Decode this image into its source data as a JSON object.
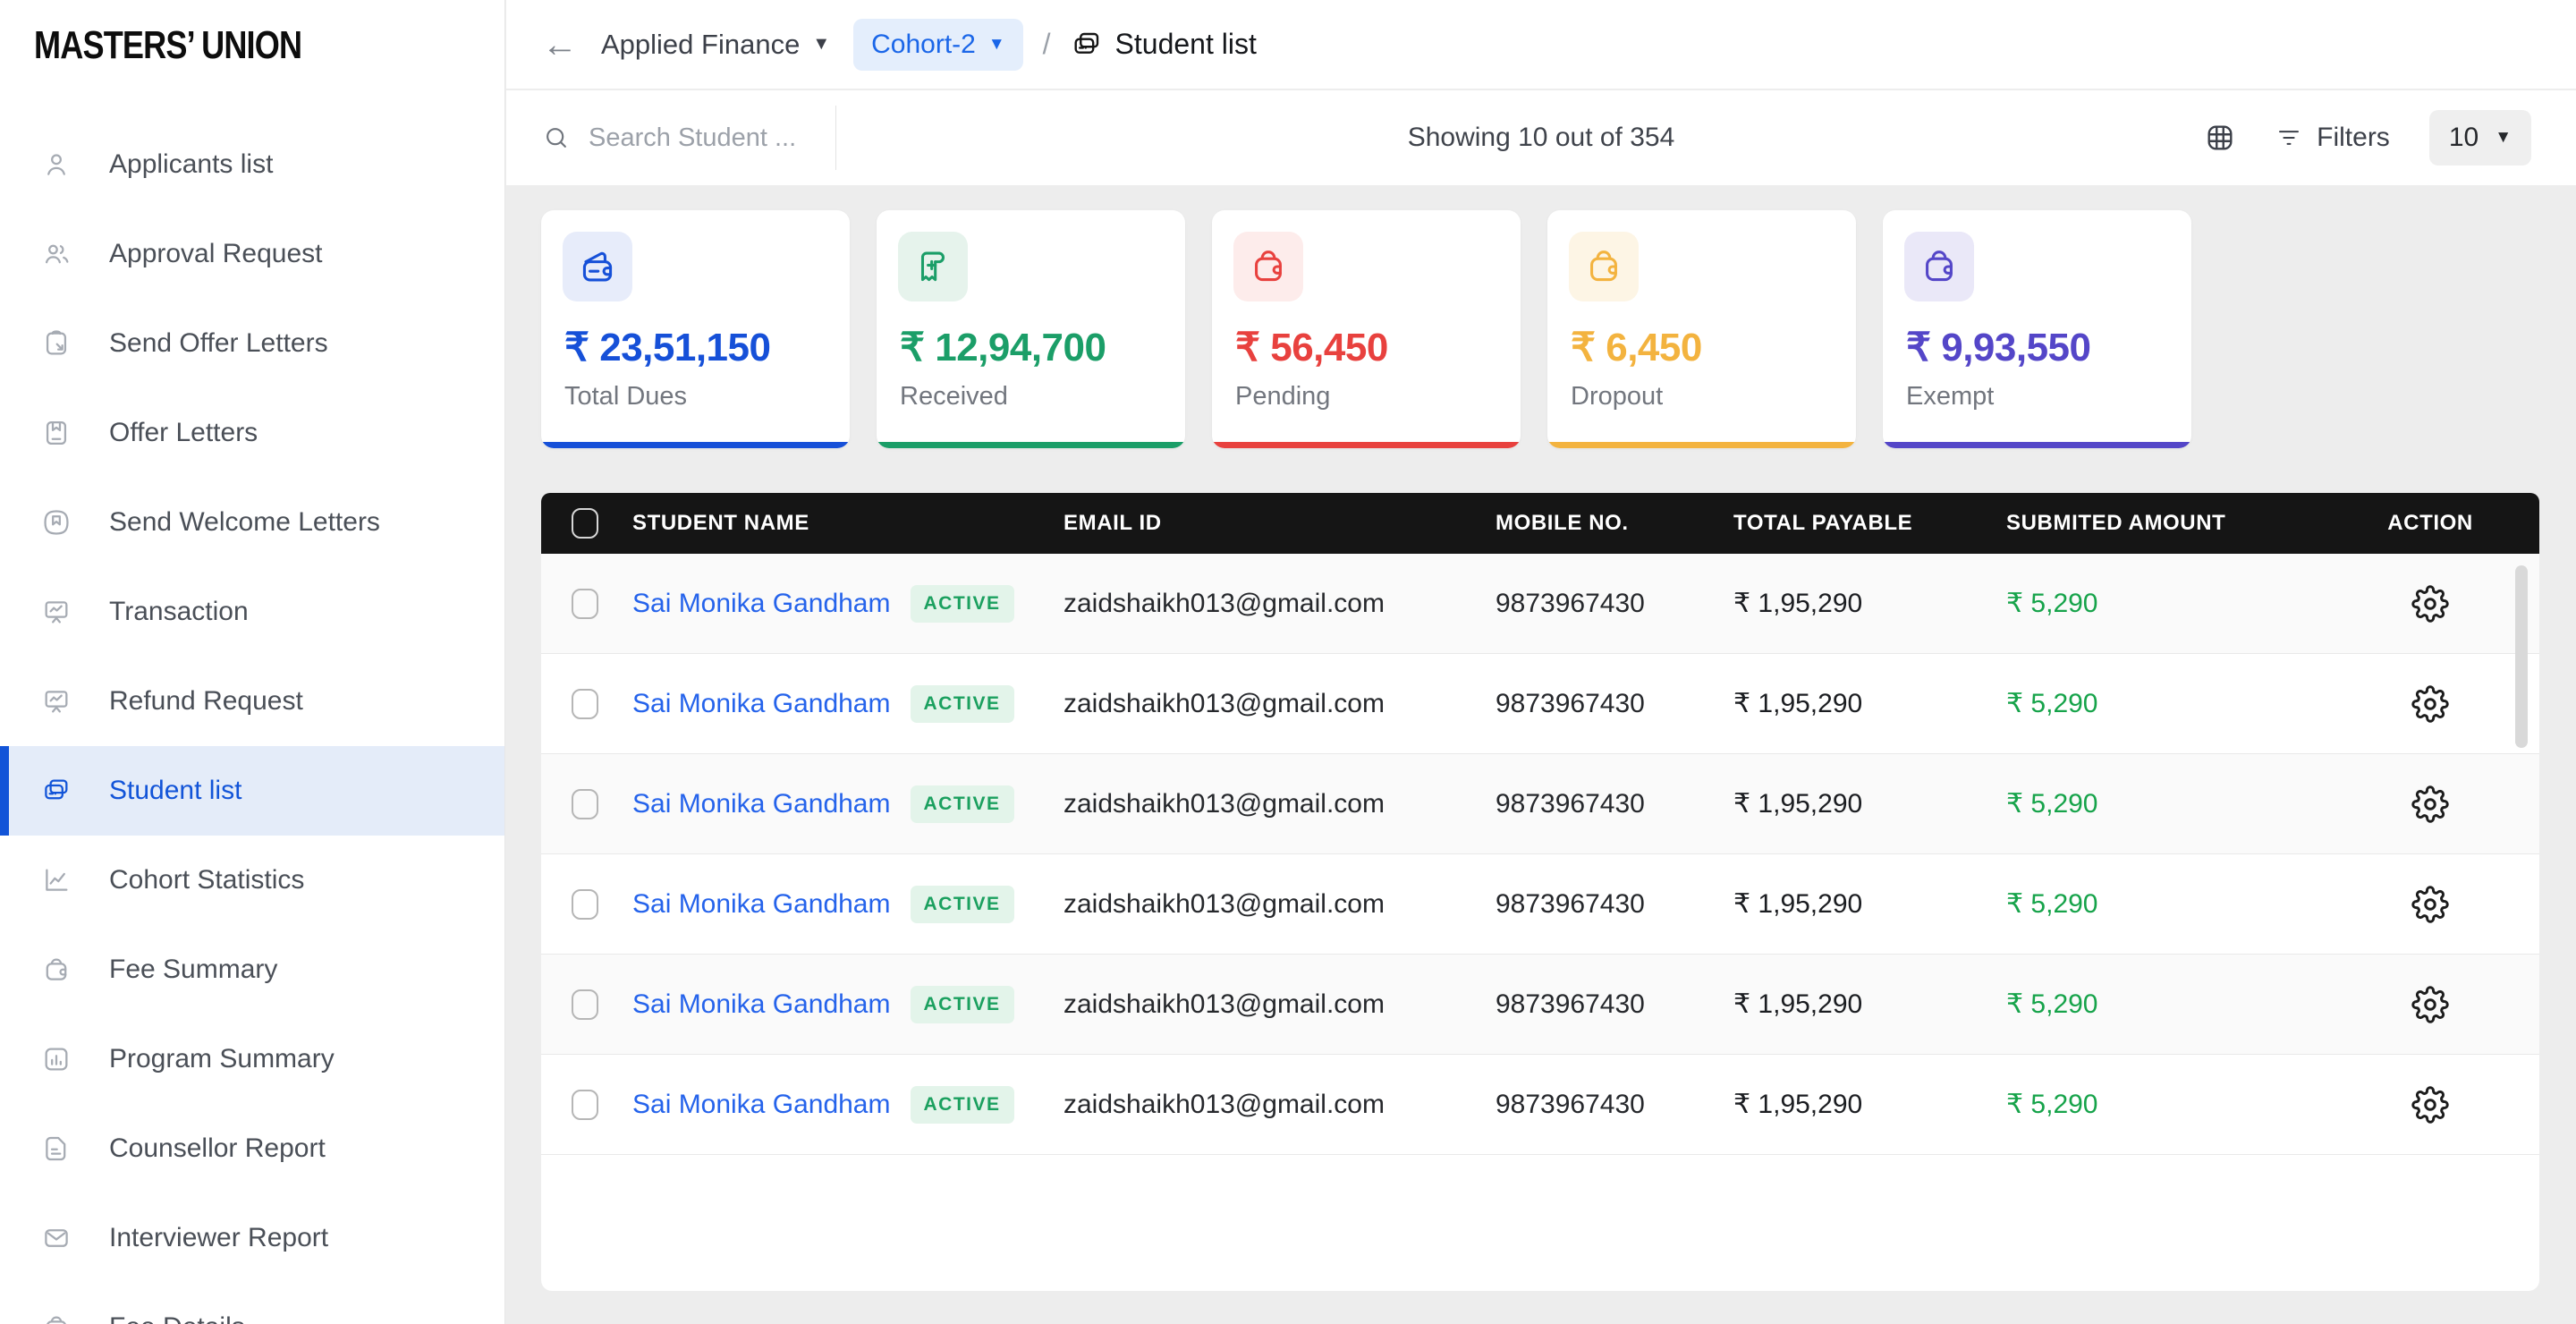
{
  "brand": {
    "logo": "MASTERS’ UNION"
  },
  "sidebar": {
    "items": [
      {
        "label": "Applicants list",
        "icon": "user-icon",
        "active": false
      },
      {
        "label": "Approval Request",
        "icon": "users-icon",
        "active": false
      },
      {
        "label": "Send Offer Letters",
        "icon": "clipboard-send-icon",
        "active": false
      },
      {
        "label": "Offer Letters",
        "icon": "book-icon",
        "active": false
      },
      {
        "label": "Send Welcome Letters",
        "icon": "badge-bookmark-icon",
        "active": false
      },
      {
        "label": "Transaction",
        "icon": "presentation-chart-icon",
        "active": false
      },
      {
        "label": "Refund Request",
        "icon": "presentation-chart-icon",
        "active": false
      },
      {
        "label": "Student list",
        "icon": "cards-stack-icon",
        "active": true
      },
      {
        "label": "Cohort Statistics",
        "icon": "line-chart-icon",
        "active": false
      },
      {
        "label": "Fee Summary",
        "icon": "wallet-icon",
        "active": false
      },
      {
        "label": "Program Summary",
        "icon": "chart-square-icon",
        "active": false
      },
      {
        "label": "Counsellor Report",
        "icon": "document-icon",
        "active": false
      },
      {
        "label": "Interviewer Report",
        "icon": "mail-icon",
        "active": false
      },
      {
        "label": "Fee Details",
        "icon": "wallet-icon",
        "active": false
      }
    ]
  },
  "topbar": {
    "back_icon": "←",
    "program_label": "Applied Finance",
    "cohort_label": "Cohort-2",
    "separator": "/",
    "page_icon": "cards-stack-icon",
    "page_label": "Student list"
  },
  "toolbar": {
    "search_placeholder": "Search Student ...",
    "showing_text": "Showing 10 out of 354",
    "grid_icon": "table-grid-icon",
    "filters_label": "Filters",
    "page_size": "10"
  },
  "cards": [
    {
      "icon": "wallet-minus-icon",
      "amount": "₹ 23,51,150",
      "label": "Total Dues",
      "color": "#1650d8",
      "icon_bg": "#e7ecfa"
    },
    {
      "icon": "receipt-plus-icon",
      "amount": "₹ 12,94,700",
      "label": "Received",
      "color": "#1b9e68",
      "icon_bg": "#e6f3ec"
    },
    {
      "icon": "purse-icon",
      "amount": "₹ 56,450",
      "label": "Pending",
      "color": "#e8413e",
      "icon_bg": "#fdeceb"
    },
    {
      "icon": "purse-icon",
      "amount": "₹ 6,450",
      "label": "Dropout",
      "color": "#f3b33f",
      "icon_bg": "#fdf5e5"
    },
    {
      "icon": "purse-icon",
      "amount": "₹ 9,93,550",
      "label": "Exempt",
      "color": "#5446c8",
      "icon_bg": "#eae8f8"
    }
  ],
  "table": {
    "headers": [
      "STUDENT NAME",
      "EMAIL ID",
      "MOBILE NO.",
      "TOTAL PAYABLE",
      "SUBMITED AMOUNT",
      "ACTION"
    ],
    "rows": [
      {
        "name": "Sai Monika Gandham",
        "status": "ACTIVE",
        "email": "zaidshaikh013@gmail.com",
        "mobile": "9873967430",
        "payable": "₹ 1,95,290",
        "submitted": "₹ 5,290"
      },
      {
        "name": "Sai Monika Gandham",
        "status": "ACTIVE",
        "email": "zaidshaikh013@gmail.com",
        "mobile": "9873967430",
        "payable": "₹ 1,95,290",
        "submitted": "₹ 5,290"
      },
      {
        "name": "Sai Monika Gandham",
        "status": "ACTIVE",
        "email": "zaidshaikh013@gmail.com",
        "mobile": "9873967430",
        "payable": "₹ 1,95,290",
        "submitted": "₹ 5,290"
      },
      {
        "name": "Sai Monika Gandham",
        "status": "ACTIVE",
        "email": "zaidshaikh013@gmail.com",
        "mobile": "9873967430",
        "payable": "₹ 1,95,290",
        "submitted": "₹ 5,290"
      },
      {
        "name": "Sai Monika Gandham",
        "status": "ACTIVE",
        "email": "zaidshaikh013@gmail.com",
        "mobile": "9873967430",
        "payable": "₹ 1,95,290",
        "submitted": "₹ 5,290"
      },
      {
        "name": "Sai Monika Gandham",
        "status": "ACTIVE",
        "email": "zaidshaikh013@gmail.com",
        "mobile": "9873967430",
        "payable": "₹ 1,95,290",
        "submitted": "₹ 5,290"
      }
    ]
  }
}
